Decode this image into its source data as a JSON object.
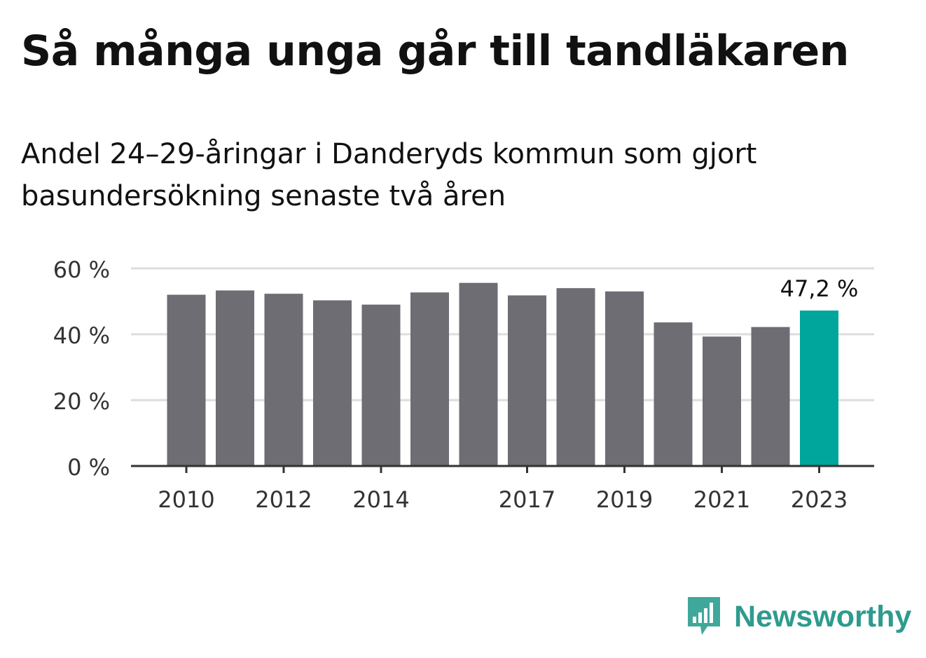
{
  "title": "Så många unga går till tandläkaren",
  "subtitle": "Andel 24–29-åringar i Danderyds kommun som gjort basundersökning senaste två åren",
  "brand": {
    "name": "Newsworthy",
    "color": "#2e9b8e",
    "icon": "bar-chart-speech-bubble-icon"
  },
  "colors": {
    "bar": "#6d6d73",
    "highlight": "#00a59b",
    "grid": "#dddddd",
    "axis": "#333333",
    "text": "#333333"
  },
  "chart_data": {
    "type": "bar",
    "title": "Så många unga går till tandläkaren",
    "subtitle": "Andel 24–29-åringar i Danderyds kommun som gjort basundersökning senaste två åren",
    "categories": [
      "2010",
      "2011",
      "2012",
      "2013",
      "2014",
      "2015",
      "2016",
      "2017",
      "2018",
      "2019",
      "2020",
      "2021",
      "2022",
      "2023"
    ],
    "values": [
      52.0,
      53.3,
      52.3,
      50.3,
      49.0,
      52.7,
      55.6,
      51.8,
      54.0,
      53.0,
      43.6,
      39.3,
      42.2,
      47.2
    ],
    "highlight_index": 13,
    "highlight_label": "47,2 %",
    "xticks": [
      "2010",
      "2012",
      "2014",
      "2017",
      "2019",
      "2021",
      "2023"
    ],
    "yticks": [
      "0 %",
      "20 %",
      "40 %",
      "60 %"
    ],
    "ylim": [
      0,
      60
    ],
    "grid": true,
    "xlabel": "",
    "ylabel": ""
  }
}
